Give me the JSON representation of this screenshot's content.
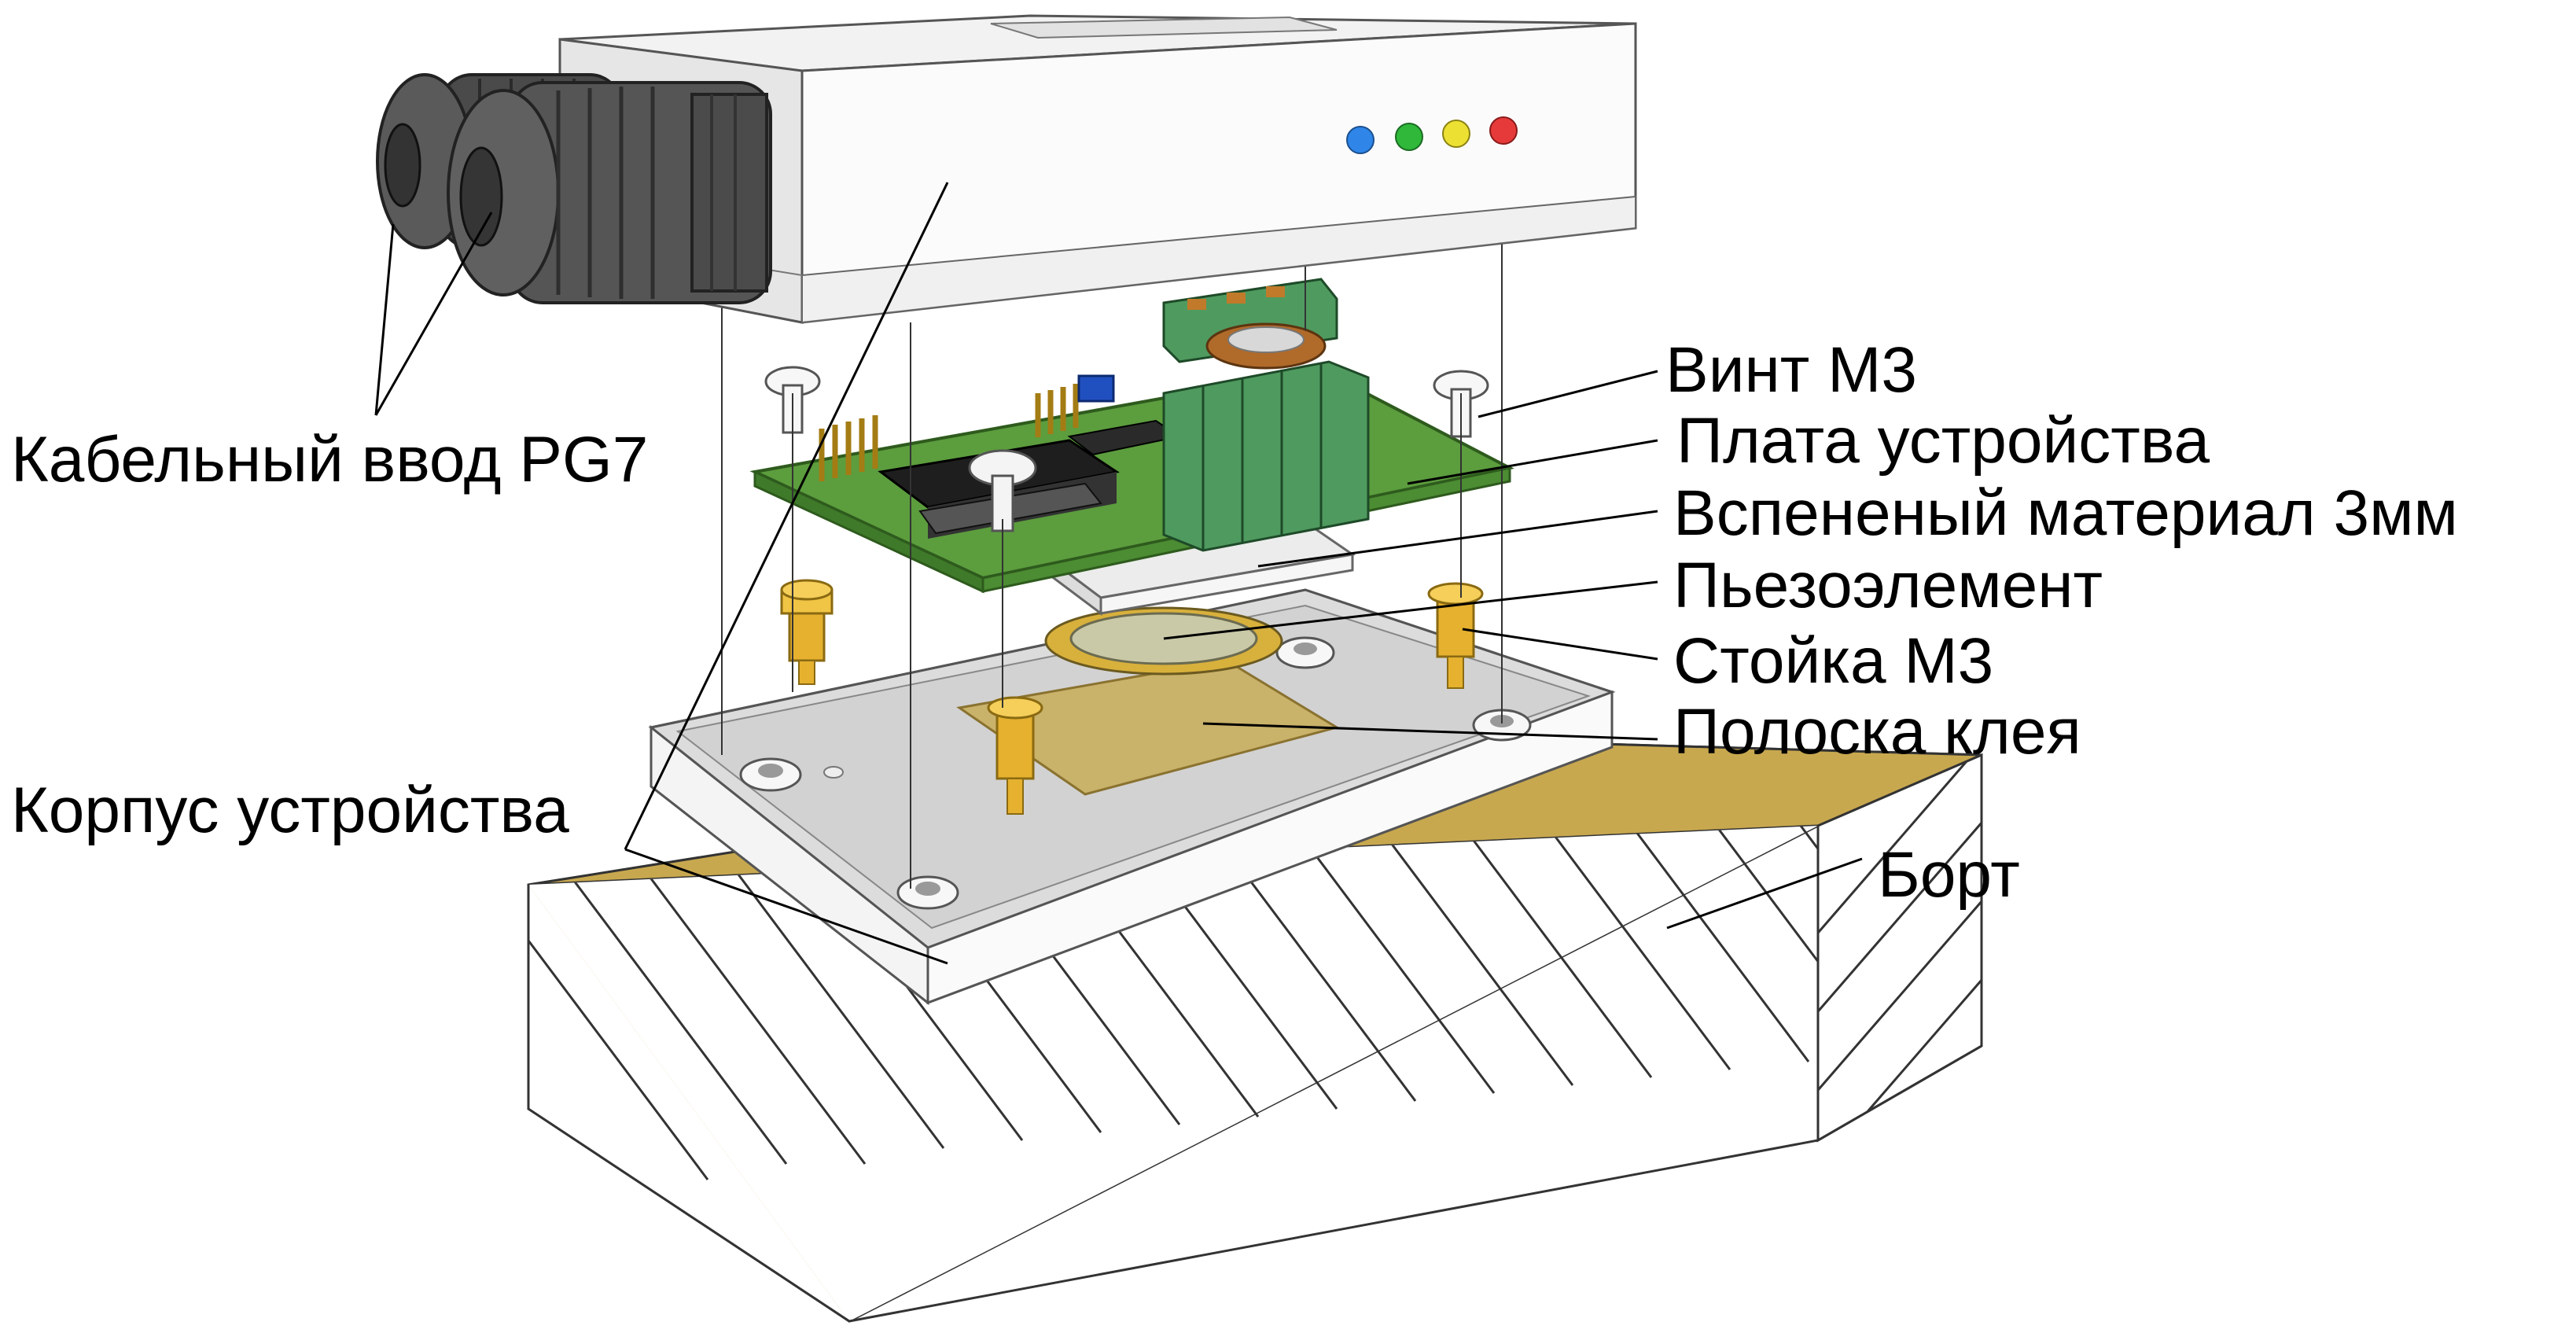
{
  "labels": {
    "cable_gland": "Кабельный ввод PG7",
    "screw": "Винт M3",
    "board": "Плата устройства",
    "foam": "Вспененый материал 3мм",
    "piezo": "Пьезоэлемент",
    "standoff": "Стойка M3",
    "glue_strip": "Полоска клея",
    "housing": "Корпус устройства",
    "rim": "Борт"
  },
  "leds": [
    {
      "name": "blue",
      "color": "#2f86e8"
    },
    {
      "name": "green",
      "color": "#2fb83a"
    },
    {
      "name": "yellow",
      "color": "#ece032"
    },
    {
      "name": "red",
      "color": "#e63a3a"
    }
  ],
  "colors": {
    "rim_top": "#c2a24d",
    "pcb": "#5c9d3e",
    "terminal": "#4f9a5f",
    "brass": "#e5b12e",
    "glue": "#c8ad57",
    "gland": "#555555",
    "housing": "#f2f2f2"
  }
}
